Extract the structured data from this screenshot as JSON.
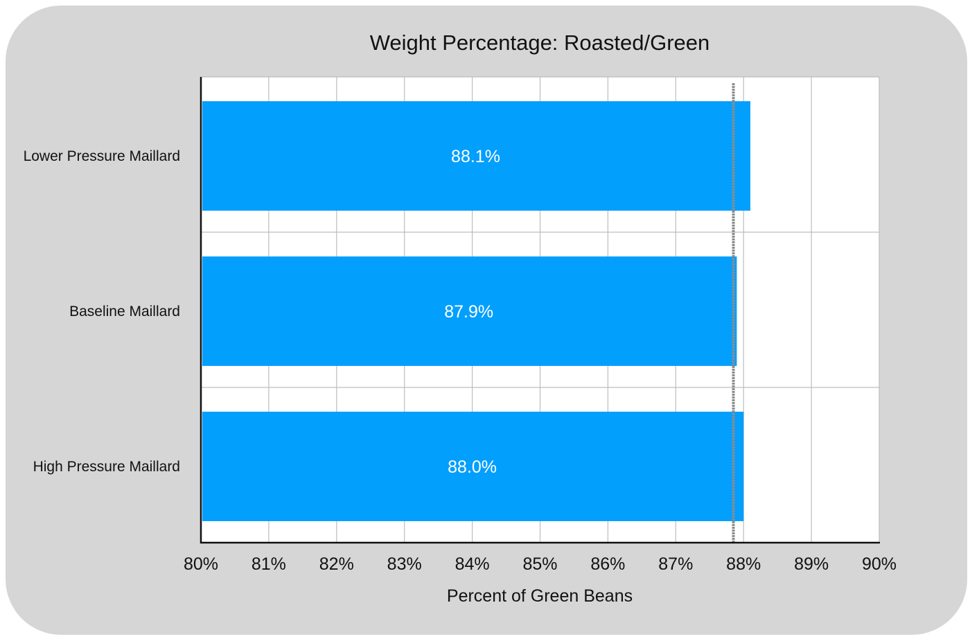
{
  "chart_data": {
    "type": "bar",
    "orientation": "horizontal",
    "title": "Weight Percentage: Roasted/Green",
    "xlabel": "Percent of Green Beans",
    "ylabel": "",
    "xlim": [
      80,
      90
    ],
    "x_ticks": [
      "80%",
      "81%",
      "82%",
      "83%",
      "84%",
      "85%",
      "86%",
      "87%",
      "88%",
      "89%",
      "90%"
    ],
    "categories": [
      "Lower Pressure Maillard",
      "Baseline Maillard",
      "High Pressure Maillard"
    ],
    "values": [
      88.1,
      87.9,
      88.0
    ],
    "data_labels": [
      "88.1%",
      "87.9%",
      "88.0%"
    ],
    "reference_line": 87.85,
    "grid": true,
    "legend": "none",
    "colors": {
      "bar": "#039ffd",
      "grid": "#bdbdbd",
      "reference_line": "#8c8c8c",
      "background": "#d6d6d6",
      "plot_background": "#ffffff"
    }
  }
}
